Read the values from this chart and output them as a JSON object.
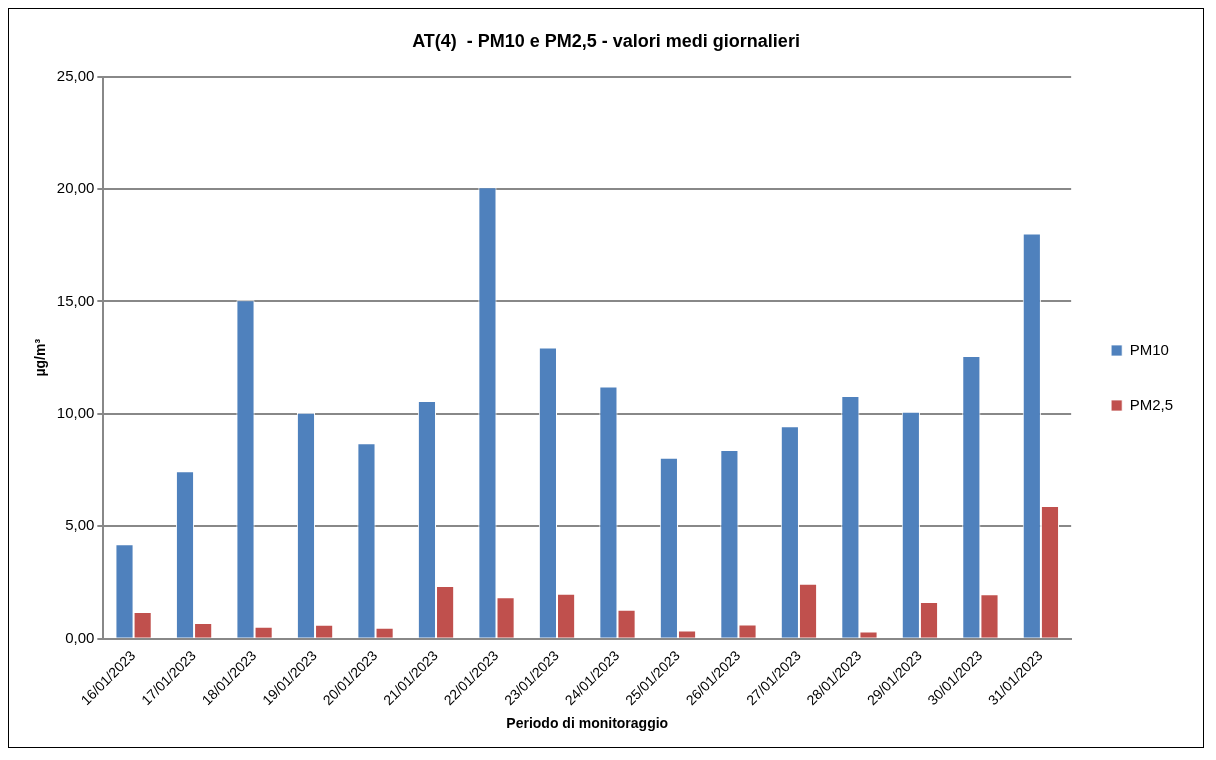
{
  "chart_data": {
    "type": "bar",
    "title": "AT(4)  - PM10 e PM2,5 - valori medi giornalieri",
    "xlabel": "Periodo di monitoraggio",
    "ylabel": "µg/m³",
    "categories": [
      "16/01/2023",
      "17/01/2023",
      "18/01/2023",
      "19/01/2023",
      "20/01/2023",
      "21/01/2023",
      "22/01/2023",
      "23/01/2023",
      "24/01/2023",
      "25/01/2023",
      "26/01/2023",
      "27/01/2023",
      "28/01/2023",
      "29/01/2023",
      "30/01/2023",
      "31/01/2023"
    ],
    "series": [
      {
        "name": "PM10",
        "color": "#4f81bd",
        "values": [
          4.2,
          7.45,
          15.05,
          10.05,
          8.7,
          10.57,
          20.08,
          12.95,
          11.22,
          8.05,
          8.4,
          9.45,
          10.8,
          10.1,
          12.57,
          18.02
        ]
      },
      {
        "name": "PM2,5",
        "color": "#c0504d",
        "values": [
          1.19,
          0.7,
          0.54,
          0.62,
          0.49,
          2.35,
          1.85,
          2.0,
          1.29,
          0.37,
          0.64,
          2.45,
          0.32,
          1.64,
          1.98,
          5.91
        ]
      }
    ],
    "ylim": [
      0,
      25
    ],
    "yticks": [
      {
        "value": 0,
        "label": "0,00"
      },
      {
        "value": 5,
        "label": "5,00"
      },
      {
        "value": 10,
        "label": "10,00"
      },
      {
        "value": 15,
        "label": "15,00"
      },
      {
        "value": 20,
        "label": "20,00"
      },
      {
        "value": 25,
        "label": "25,00"
      }
    ],
    "grid": "y",
    "legend": "right"
  }
}
